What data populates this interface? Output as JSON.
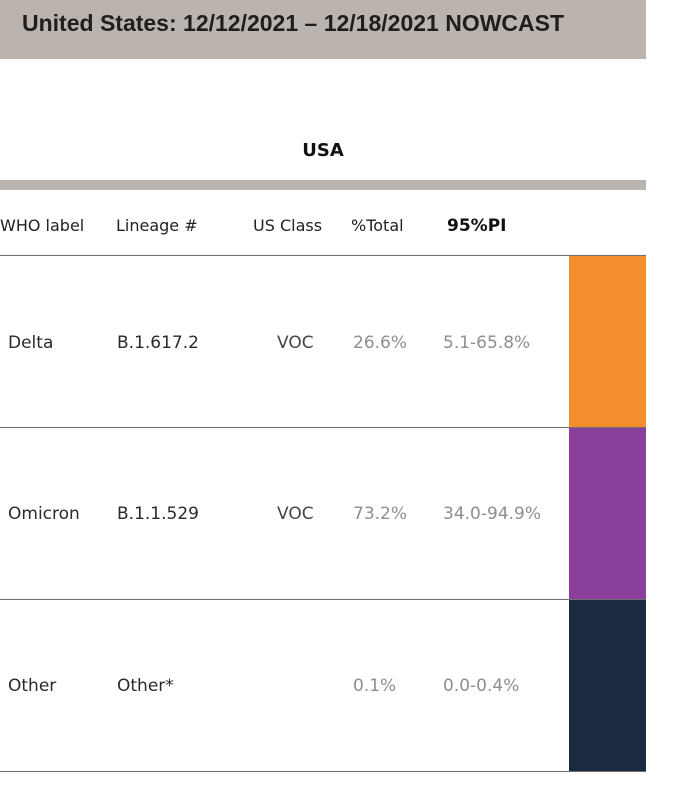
{
  "chart_data": {
    "type": "table",
    "title": "United States: 12/12/2021 – 12/18/2021 NOWCAST",
    "region": "USA",
    "columns": [
      "WHO label",
      "Lineage #",
      "US Class",
      "%Total",
      "95%PI"
    ],
    "rows": [
      {
        "who_label": "Delta",
        "lineage": "B.1.617.2",
        "us_class": "VOC",
        "pct_total": "26.6%",
        "pi": "5.1-65.8%",
        "color": "#f28e2b"
      },
      {
        "who_label": "Omicron",
        "lineage": "B.1.1.529",
        "us_class": "VOC",
        "pct_total": "73.2%",
        "pi": "34.0-94.9%",
        "color": "#8a3f9a"
      },
      {
        "who_label": "Other",
        "lineage": "Other*",
        "us_class": "",
        "pct_total": "0.1%",
        "pi": "0.0-0.4%",
        "color": "#1b2a40"
      }
    ],
    "values": [
      26.6,
      73.2,
      0.1
    ]
  }
}
